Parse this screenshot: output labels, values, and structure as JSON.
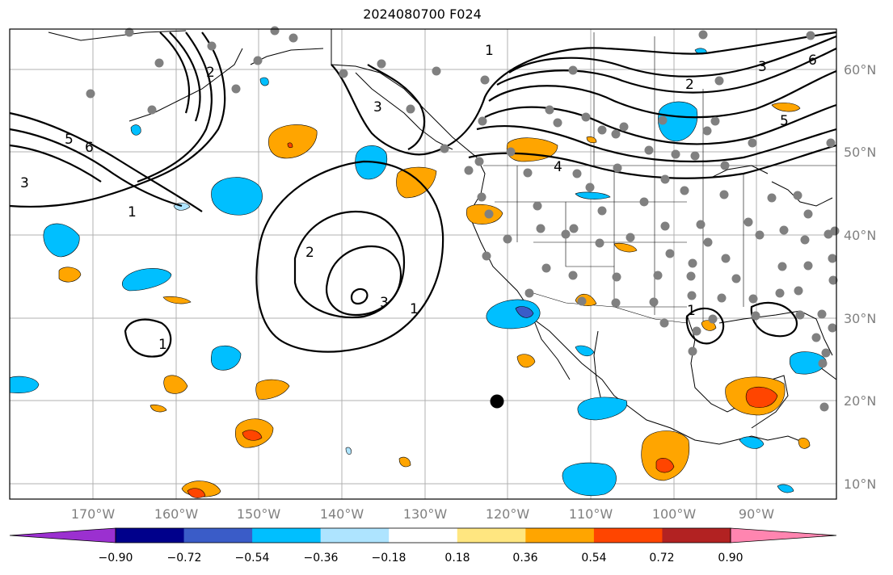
{
  "title": "2024080700 F024",
  "lat_labels": [
    "60°N",
    "50°N",
    "40°N",
    "30°N",
    "20°N",
    "10°N"
  ],
  "lon_labels": [
    "170°W",
    "160°W",
    "150°W",
    "140°W",
    "130°W",
    "120°W",
    "110°W",
    "100°W",
    "90°W"
  ],
  "colorbar": {
    "ticks": [
      "−0.90",
      "−0.72",
      "−0.54",
      "−0.36",
      "−0.18",
      "0.18",
      "0.36",
      "0.54",
      "0.72",
      "0.90"
    ],
    "colors": [
      "#9b30d0",
      "#00008b",
      "#3a5cc8",
      "#00bfff",
      "#aee4ff",
      "#ffffff",
      "#ffe680",
      "#ffa500",
      "#ff4500",
      "#b22222",
      "#ff85b0"
    ]
  },
  "contour_labels": [
    "1",
    "2",
    "3",
    "4",
    "5",
    "6"
  ],
  "colors": {
    "land_dot": "#808080",
    "storm_marker": "#000000",
    "grid": "#b0b0b0"
  }
}
